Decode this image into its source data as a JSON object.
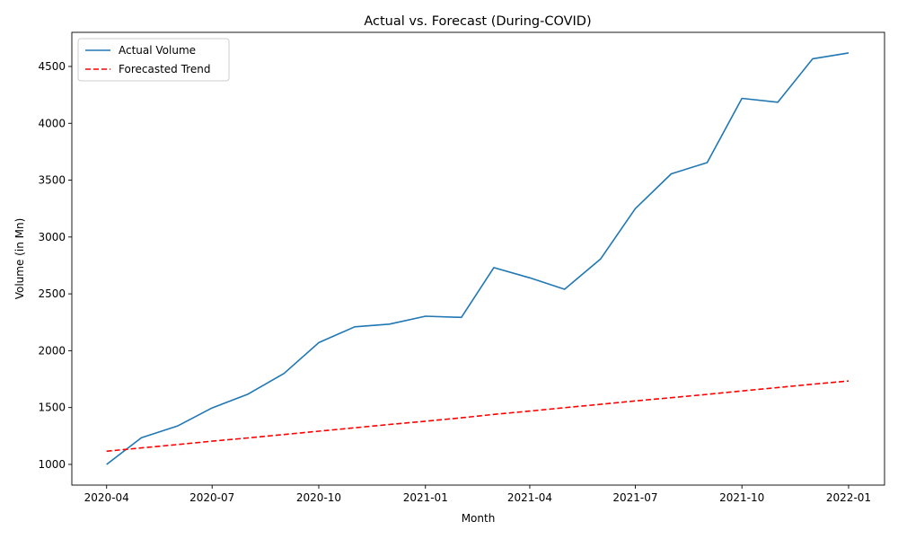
{
  "chart_data": {
    "type": "line",
    "title": "Actual vs. Forecast (During-COVID)",
    "xlabel": "Month",
    "ylabel": "Volume (in Mn)",
    "x": [
      "2020-04",
      "2020-05",
      "2020-06",
      "2020-07",
      "2020-08",
      "2020-09",
      "2020-10",
      "2020-11",
      "2020-12",
      "2021-01",
      "2021-02",
      "2021-03",
      "2021-04",
      "2021-05",
      "2021-06",
      "2021-07",
      "2021-08",
      "2021-09",
      "2021-10",
      "2021-11",
      "2021-12",
      "2022-01"
    ],
    "x_ticks": [
      "2020-04",
      "2020-07",
      "2020-10",
      "2021-01",
      "2021-04",
      "2021-07",
      "2021-10",
      "2022-01"
    ],
    "y_ticks": [
      1000,
      1500,
      2000,
      2500,
      3000,
      3500,
      4000,
      4500
    ],
    "ylim": [
      818,
      4800
    ],
    "xlim": [
      "2020-03-02",
      "2022-02-01"
    ],
    "grid": false,
    "legend_position": "top-left",
    "series": [
      {
        "name": "Actual Volume",
        "style": "solid",
        "color": "#1f77b4",
        "values": [
          1000,
          1235,
          1337,
          1497,
          1618,
          1800,
          2071,
          2210,
          2234,
          2303,
          2293,
          2731,
          2641,
          2540,
          2806,
          3249,
          3556,
          3654,
          4219,
          4185,
          4568,
          4619
        ]
      },
      {
        "name": "Forecasted Trend",
        "style": "dashed",
        "color": "#ff0000",
        "values": [
          1116,
          1145,
          1174,
          1204,
          1233,
          1263,
          1292,
          1322,
          1351,
          1380,
          1410,
          1440,
          1469,
          1499,
          1528,
          1558,
          1587,
          1616,
          1646,
          1676,
          1705,
          1734
        ]
      }
    ]
  }
}
